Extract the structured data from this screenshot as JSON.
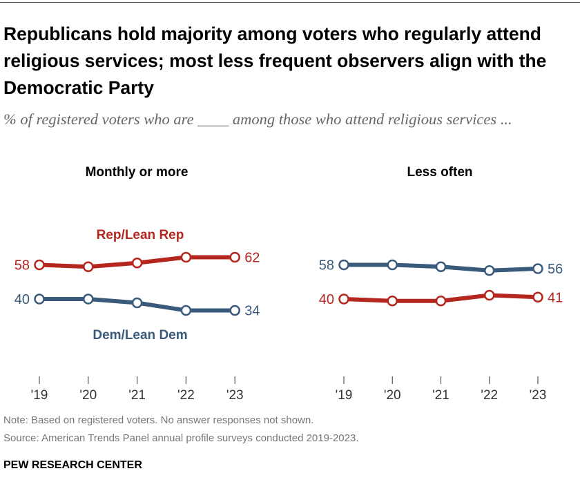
{
  "title": "Republicans hold majority among voters who regularly attend religious services; most less frequent observers align with the Democratic Party",
  "subtitle": "% of registered voters who are ____ among those who attend religious services ...",
  "note": "Note: Based on registered voters. No answer responses not shown.",
  "source": "Source: American Trends Panel annual profile surveys conducted 2019-2023.",
  "logo": "PEW RESEARCH CENTER",
  "colors": {
    "rep": "#b5261e",
    "dem": "#3a5a7c"
  },
  "chart_data": [
    {
      "type": "line",
      "title": "Monthly or more",
      "categories": [
        "'19",
        "'20",
        "'21",
        "'22",
        "'23"
      ],
      "series": [
        {
          "name": "Rep/Lean Rep",
          "color": "#b5261e",
          "values": [
            58,
            57,
            59,
            62,
            62
          ]
        },
        {
          "name": "Dem/Lean Dem",
          "color": "#3a5a7c",
          "values": [
            40,
            40,
            38,
            34,
            34
          ]
        }
      ]
    },
    {
      "type": "line",
      "title": "Less often",
      "categories": [
        "'19",
        "'20",
        "'21",
        "'22",
        "'23"
      ],
      "series": [
        {
          "name": "Dem/Lean Dem",
          "color": "#3a5a7c",
          "values": [
            58,
            58,
            57,
            55,
            56
          ]
        },
        {
          "name": "Rep/Lean Rep",
          "color": "#b5261e",
          "values": [
            40,
            39,
            39,
            42,
            41
          ]
        }
      ]
    }
  ]
}
